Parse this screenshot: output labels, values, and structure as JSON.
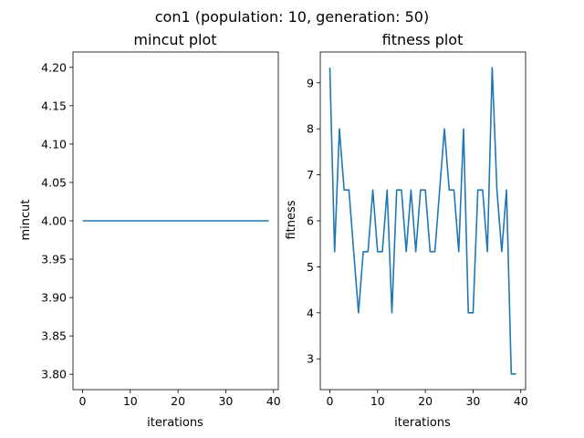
{
  "figure": {
    "suptitle": "con1 (population: 10, generation: 50)"
  },
  "chart_data": [
    {
      "type": "line",
      "title": "mincut plot",
      "xlabel": "iterations",
      "ylabel": "mincut",
      "xlim": [
        -2,
        41
      ],
      "ylim": [
        3.78,
        4.22
      ],
      "xticks": [
        0,
        10,
        20,
        30,
        40
      ],
      "yticks": [
        3.8,
        3.85,
        3.9,
        3.95,
        4.0,
        4.05,
        4.1,
        4.15,
        4.2
      ],
      "ytick_labels": [
        "3.80",
        "3.85",
        "3.90",
        "3.95",
        "4.00",
        "4.05",
        "4.10",
        "4.15",
        "4.20"
      ],
      "grid": false,
      "color": "#1f77b4",
      "series": [
        {
          "x": [
            0,
            1,
            2,
            3,
            4,
            5,
            6,
            7,
            8,
            9,
            10,
            11,
            12,
            13,
            14,
            15,
            16,
            17,
            18,
            19,
            20,
            21,
            22,
            23,
            24,
            25,
            26,
            27,
            28,
            29,
            30,
            31,
            32,
            33,
            34,
            35,
            36,
            37,
            38,
            39
          ],
          "values": [
            4,
            4,
            4,
            4,
            4,
            4,
            4,
            4,
            4,
            4,
            4,
            4,
            4,
            4,
            4,
            4,
            4,
            4,
            4,
            4,
            4,
            4,
            4,
            4,
            4,
            4,
            4,
            4,
            4,
            4,
            4,
            4,
            4,
            4,
            4,
            4,
            4,
            4,
            4,
            4
          ]
        }
      ]
    },
    {
      "type": "line",
      "title": "fitness plot",
      "xlabel": "iterations",
      "ylabel": "fitness",
      "xlim": [
        -2,
        41
      ],
      "ylim": [
        2.33,
        9.67
      ],
      "xticks": [
        0,
        10,
        20,
        30,
        40
      ],
      "yticks": [
        3,
        4,
        5,
        6,
        7,
        8,
        9
      ],
      "ytick_labels": [
        "3",
        "4",
        "5",
        "6",
        "7",
        "8",
        "9"
      ],
      "grid": false,
      "color": "#1f77b4",
      "series": [
        {
          "x": [
            0,
            1,
            2,
            3,
            4,
            5,
            6,
            7,
            8,
            9,
            10,
            11,
            12,
            13,
            14,
            15,
            16,
            17,
            18,
            19,
            20,
            21,
            22,
            23,
            24,
            25,
            26,
            27,
            28,
            29,
            30,
            31,
            32,
            33,
            34,
            35,
            36,
            37,
            38,
            39
          ],
          "values": [
            9.33,
            5.33,
            8.0,
            6.67,
            6.67,
            5.33,
            4.0,
            5.33,
            5.33,
            6.67,
            5.33,
            5.33,
            6.67,
            4.0,
            6.67,
            6.67,
            5.33,
            6.67,
            5.33,
            6.67,
            6.67,
            5.33,
            5.33,
            6.67,
            8.0,
            6.67,
            6.67,
            5.33,
            8.0,
            4.0,
            4.0,
            6.67,
            6.67,
            5.33,
            9.33,
            6.67,
            5.33,
            6.67,
            2.67,
            2.67
          ]
        }
      ]
    }
  ]
}
